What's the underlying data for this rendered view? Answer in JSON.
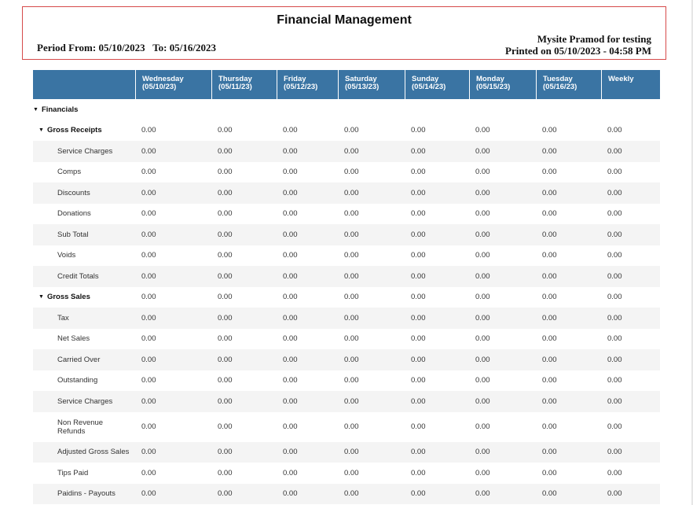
{
  "report": {
    "title": "Financial Management",
    "period_label": "Period From: 05/10/2023   To: 05/16/2023",
    "site_name": "Mysite Pramod for testing",
    "printed_on": "Printed on 05/10/2023 - 04:58 PM"
  },
  "columns": [
    {
      "day": "",
      "date": ""
    },
    {
      "day": "Wednesday",
      "date": "(05/10/23)"
    },
    {
      "day": "Thursday",
      "date": "(05/11/23)"
    },
    {
      "day": "Friday",
      "date": "(05/12/23)"
    },
    {
      "day": "Saturday",
      "date": "(05/13/23)"
    },
    {
      "day": "Sunday",
      "date": "(05/14/23)"
    },
    {
      "day": "Monday",
      "date": "(05/15/23)"
    },
    {
      "day": "Tuesday",
      "date": "(05/16/23)"
    },
    {
      "day": "Weekly",
      "date": ""
    }
  ],
  "rows": [
    {
      "label": "Financials",
      "level": 0,
      "caret": "▼",
      "values": []
    },
    {
      "label": "Gross Receipts",
      "level": 1,
      "caret": "▼",
      "values": [
        "0.00",
        "0.00",
        "0.00",
        "0.00",
        "0.00",
        "0.00",
        "0.00",
        "0.00"
      ]
    },
    {
      "label": "Service Charges",
      "level": 2,
      "caret": "",
      "values": [
        "0.00",
        "0.00",
        "0.00",
        "0.00",
        "0.00",
        "0.00",
        "0.00",
        "0.00"
      ]
    },
    {
      "label": "Comps",
      "level": 2,
      "caret": "",
      "values": [
        "0.00",
        "0.00",
        "0.00",
        "0.00",
        "0.00",
        "0.00",
        "0.00",
        "0.00"
      ]
    },
    {
      "label": "Discounts",
      "level": 2,
      "caret": "",
      "values": [
        "0.00",
        "0.00",
        "0.00",
        "0.00",
        "0.00",
        "0.00",
        "0.00",
        "0.00"
      ]
    },
    {
      "label": "Donations",
      "level": 2,
      "caret": "",
      "values": [
        "0.00",
        "0.00",
        "0.00",
        "0.00",
        "0.00",
        "0.00",
        "0.00",
        "0.00"
      ]
    },
    {
      "label": "Sub Total",
      "level": 2,
      "caret": "",
      "values": [
        "0.00",
        "0.00",
        "0.00",
        "0.00",
        "0.00",
        "0.00",
        "0.00",
        "0.00"
      ]
    },
    {
      "label": "Voids",
      "level": 2,
      "caret": "",
      "values": [
        "0.00",
        "0.00",
        "0.00",
        "0.00",
        "0.00",
        "0.00",
        "0.00",
        "0.00"
      ]
    },
    {
      "label": "Credit Totals",
      "level": 2,
      "caret": "",
      "values": [
        "0.00",
        "0.00",
        "0.00",
        "0.00",
        "0.00",
        "0.00",
        "0.00",
        "0.00"
      ]
    },
    {
      "label": "Gross Sales",
      "level": 1,
      "caret": "▼",
      "values": [
        "0.00",
        "0.00",
        "0.00",
        "0.00",
        "0.00",
        "0.00",
        "0.00",
        "0.00"
      ]
    },
    {
      "label": "Tax",
      "level": 2,
      "caret": "",
      "values": [
        "0.00",
        "0.00",
        "0.00",
        "0.00",
        "0.00",
        "0.00",
        "0.00",
        "0.00"
      ]
    },
    {
      "label": "Net Sales",
      "level": 2,
      "caret": "",
      "values": [
        "0.00",
        "0.00",
        "0.00",
        "0.00",
        "0.00",
        "0.00",
        "0.00",
        "0.00"
      ]
    },
    {
      "label": "Carried Over",
      "level": 2,
      "caret": "",
      "values": [
        "0.00",
        "0.00",
        "0.00",
        "0.00",
        "0.00",
        "0.00",
        "0.00",
        "0.00"
      ]
    },
    {
      "label": "Outstanding",
      "level": 2,
      "caret": "",
      "values": [
        "0.00",
        "0.00",
        "0.00",
        "0.00",
        "0.00",
        "0.00",
        "0.00",
        "0.00"
      ]
    },
    {
      "label": "Service Charges",
      "level": 2,
      "caret": "",
      "values": [
        "0.00",
        "0.00",
        "0.00",
        "0.00",
        "0.00",
        "0.00",
        "0.00",
        "0.00"
      ]
    },
    {
      "label": "Non Revenue Refunds",
      "level": 2,
      "caret": "",
      "values": [
        "0.00",
        "0.00",
        "0.00",
        "0.00",
        "0.00",
        "0.00",
        "0.00",
        "0.00"
      ]
    },
    {
      "label": "Adjusted Gross Sales",
      "level": 2,
      "caret": "",
      "values": [
        "0.00",
        "0.00",
        "0.00",
        "0.00",
        "0.00",
        "0.00",
        "0.00",
        "0.00"
      ]
    },
    {
      "label": "Tips Paid",
      "level": 2,
      "caret": "",
      "values": [
        "0.00",
        "0.00",
        "0.00",
        "0.00",
        "0.00",
        "0.00",
        "0.00",
        "0.00"
      ]
    },
    {
      "label": "Paidins - Payouts",
      "level": 2,
      "caret": "",
      "values": [
        "0.00",
        "0.00",
        "0.00",
        "0.00",
        "0.00",
        "0.00",
        "0.00",
        "0.00"
      ]
    }
  ],
  "colors": {
    "header_bg": "#3a74a3",
    "header_text": "#ffffff",
    "title_box_border": "#d64a4a",
    "alt_row_bg": "#f4f4f4"
  }
}
